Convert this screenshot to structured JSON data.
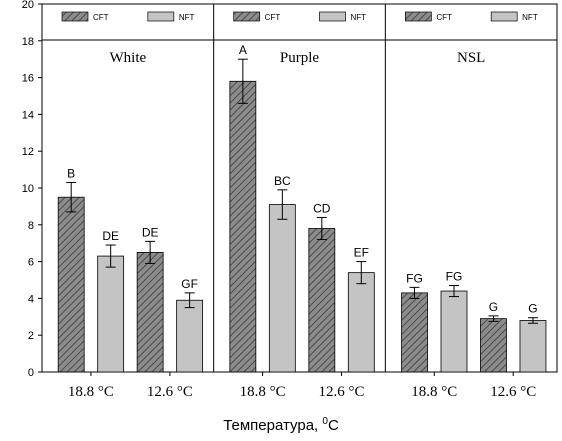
{
  "chart_data": {
    "type": "bar",
    "xlabel": "Температура, ",
    "xlabel_unit_sup": "0",
    "xlabel_unit": "C",
    "ylim": [
      0,
      20
    ],
    "yticks": [
      "0",
      "2",
      "4",
      "6",
      "8",
      "10",
      "12",
      "14",
      "16",
      "18",
      "20"
    ],
    "legend": {
      "placement": "top",
      "entries": [
        "CFT",
        "NFT"
      ]
    },
    "series_colors": {
      "CFT": "#7a7a7a",
      "NFT": "#c4c4c4"
    },
    "panels": [
      {
        "name": "White",
        "temperatures": [
          "18.8 °C",
          "12.6 °C"
        ],
        "bars": [
          {
            "series": "CFT",
            "temperature": "18.8 °C",
            "value": 9.5,
            "error": 0.8,
            "label": "B"
          },
          {
            "series": "NFT",
            "temperature": "18.8 °C",
            "value": 6.3,
            "error": 0.6,
            "label": "DE"
          },
          {
            "series": "CFT",
            "temperature": "12.6 °C",
            "value": 6.5,
            "error": 0.6,
            "label": "DE"
          },
          {
            "series": "NFT",
            "temperature": "12.6 °C",
            "value": 3.9,
            "error": 0.4,
            "label": "GF"
          }
        ]
      },
      {
        "name": "Purple",
        "temperatures": [
          "18.8 °C",
          "12.6 °C"
        ],
        "bars": [
          {
            "series": "CFT",
            "temperature": "18.8 °C",
            "value": 15.8,
            "error": 1.2,
            "label": "A"
          },
          {
            "series": "NFT",
            "temperature": "18.8 °C",
            "value": 9.1,
            "error": 0.8,
            "label": "BC"
          },
          {
            "series": "CFT",
            "temperature": "12.6 °C",
            "value": 7.8,
            "error": 0.6,
            "label": "CD"
          },
          {
            "series": "NFT",
            "temperature": "12.6 °C",
            "value": 5.4,
            "error": 0.6,
            "label": "EF"
          }
        ]
      },
      {
        "name": "NSL",
        "temperatures": [
          "18.8 °C",
          "12.6 °C"
        ],
        "bars": [
          {
            "series": "CFT",
            "temperature": "18.8 °C",
            "value": 4.3,
            "error": 0.3,
            "label": "FG"
          },
          {
            "series": "NFT",
            "temperature": "18.8 °C",
            "value": 4.4,
            "error": 0.3,
            "label": "FG"
          },
          {
            "series": "CFT",
            "temperature": "12.6 °C",
            "value": 2.9,
            "error": 0.15,
            "label": "G"
          },
          {
            "series": "NFT",
            "temperature": "12.6 °C",
            "value": 2.8,
            "error": 0.15,
            "label": "G"
          }
        ]
      }
    ]
  }
}
